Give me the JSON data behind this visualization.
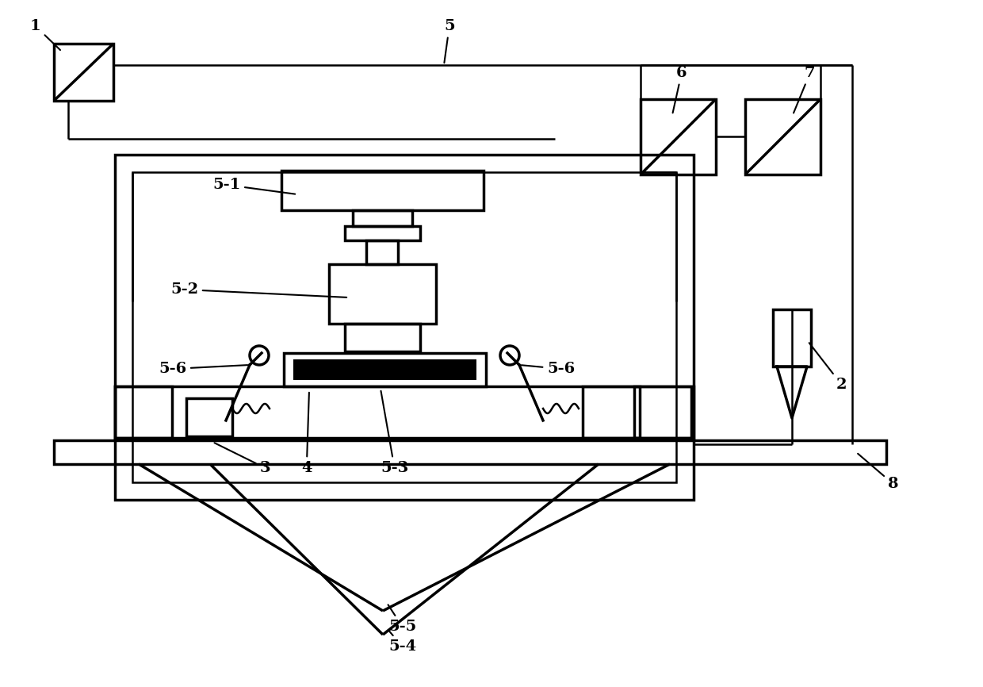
{
  "bg": "#ffffff",
  "lc": "#000000",
  "lw": 2.5,
  "lwt": 1.8,
  "fs": 14,
  "fig_w": 12.4,
  "fig_h": 8.66
}
